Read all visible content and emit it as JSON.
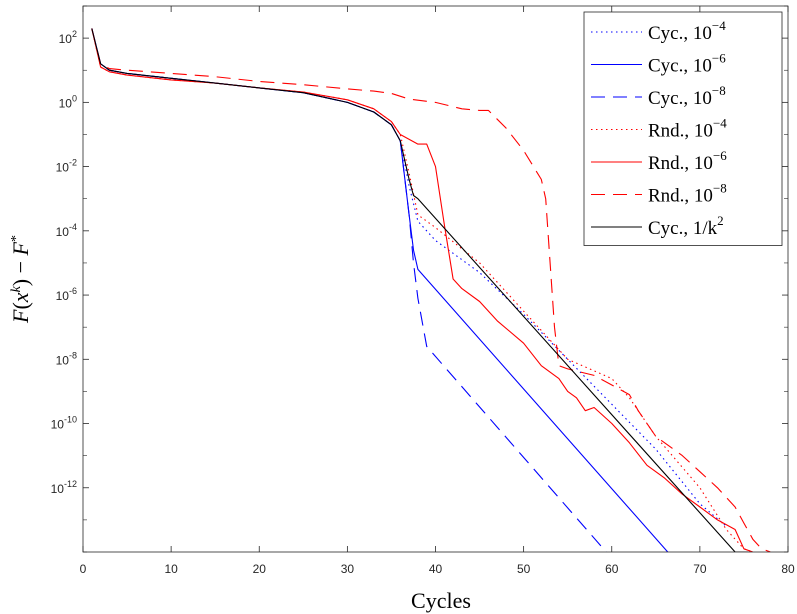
{
  "chart_data": {
    "type": "line",
    "title": "",
    "xlabel": "Cycles",
    "ylabel": "F(x^k) − F^*",
    "xlim": [
      0,
      80
    ],
    "ylim_log10": [
      -14,
      3
    ],
    "y_scale": "log",
    "x_ticks": [
      0,
      10,
      20,
      30,
      40,
      50,
      60,
      70,
      80
    ],
    "x_tick_labels": [
      "0",
      "10",
      "20",
      "30",
      "40",
      "50",
      "60",
      "70",
      "80"
    ],
    "y_tick_exponents": [
      2,
      0,
      -2,
      -4,
      -6,
      -8,
      -10,
      -12
    ],
    "y_tick_labels": [
      {
        "base": "10",
        "exp": "2"
      },
      {
        "base": "10",
        "exp": "0"
      },
      {
        "base": "10",
        "exp": "-2"
      },
      {
        "base": "10",
        "exp": "-4"
      },
      {
        "base": "10",
        "exp": "-6"
      },
      {
        "base": "10",
        "exp": "-8"
      },
      {
        "base": "10",
        "exp": "-10"
      },
      {
        "base": "10",
        "exp": "-12"
      }
    ],
    "legend_position": "top-right",
    "series": [
      {
        "name": "Cyc., 10^-4",
        "label_main": "Cyc., 10",
        "label_exp": "−4",
        "color": "#0000ff",
        "style": "dotted",
        "x": [
          1,
          2,
          3,
          5,
          10,
          15,
          20,
          25,
          30,
          33,
          35,
          36,
          37,
          38,
          40,
          45,
          50,
          55,
          60,
          65,
          70,
          73
        ],
        "log10_y": [
          2.3,
          1.2,
          1.0,
          0.9,
          0.75,
          0.6,
          0.45,
          0.3,
          0.0,
          -0.3,
          -0.7,
          -1.2,
          -2.6,
          -3.7,
          -4.3,
          -5.3,
          -6.6,
          -8.0,
          -9.4,
          -10.8,
          -12.5,
          -13.2
        ]
      },
      {
        "name": "Cyc., 10^-6",
        "label_main": "Cyc., 10",
        "label_exp": "−6",
        "color": "#0000ff",
        "style": "solid",
        "x": [
          1,
          2,
          3,
          5,
          10,
          15,
          20,
          25,
          30,
          33,
          35,
          36,
          37,
          37.5,
          38,
          67
        ],
        "log10_y": [
          2.3,
          1.2,
          1.0,
          0.9,
          0.75,
          0.6,
          0.45,
          0.3,
          0.0,
          -0.3,
          -0.7,
          -1.2,
          -3.5,
          -4.6,
          -5.2,
          -14.2
        ]
      },
      {
        "name": "Cyc., 10^-8",
        "label_main": "Cyc., 10",
        "label_exp": "−8",
        "color": "#0000ff",
        "style": "dashed",
        "x": [
          1,
          2,
          3,
          5,
          10,
          15,
          20,
          25,
          30,
          33,
          35,
          36,
          37,
          37.5,
          38,
          39,
          60,
          61
        ],
        "log10_y": [
          2.3,
          1.2,
          1.0,
          0.9,
          0.75,
          0.6,
          0.45,
          0.3,
          0.0,
          -0.3,
          -0.7,
          -1.2,
          -3.5,
          -5.0,
          -6.1,
          -7.6,
          -14.2,
          -14.2
        ]
      },
      {
        "name": "Rnd., 10^-4",
        "label_main": "Rnd., 10",
        "label_exp": "−4",
        "color": "#ff0000",
        "style": "dotted",
        "x": [
          1,
          2,
          3,
          5,
          10,
          15,
          20,
          25,
          30,
          33,
          35,
          36,
          37,
          38,
          40,
          45,
          50,
          55,
          60,
          62,
          65,
          70,
          73,
          75,
          76
        ],
        "log10_y": [
          2.3,
          1.1,
          0.95,
          0.85,
          0.7,
          0.6,
          0.45,
          0.32,
          0.08,
          -0.2,
          -0.6,
          -1.0,
          -2.2,
          -3.5,
          -3.9,
          -5.0,
          -6.5,
          -8.0,
          -8.6,
          -9.2,
          -10.4,
          -12.0,
          -13.3,
          -13.9,
          -14.0
        ]
      },
      {
        "name": "Rnd., 10^-6",
        "label_main": "Rnd., 10",
        "label_exp": "−6",
        "color": "#ff0000",
        "style": "solid",
        "x": [
          1,
          2,
          3,
          5,
          10,
          15,
          20,
          25,
          30,
          33,
          35,
          36,
          38,
          39,
          40,
          41,
          42,
          43,
          45,
          47,
          50,
          52,
          54,
          55,
          56,
          57,
          58,
          60,
          62,
          64,
          66,
          68,
          70,
          72,
          74,
          75,
          76
        ],
        "log10_y": [
          2.3,
          1.1,
          0.95,
          0.85,
          0.7,
          0.6,
          0.45,
          0.32,
          0.08,
          -0.2,
          -0.6,
          -1.0,
          -1.3,
          -1.3,
          -2.0,
          -3.8,
          -5.5,
          -5.8,
          -6.2,
          -6.8,
          -7.5,
          -8.2,
          -8.6,
          -9.0,
          -9.2,
          -9.6,
          -9.5,
          -10.0,
          -10.6,
          -11.3,
          -11.7,
          -12.2,
          -12.6,
          -13.0,
          -13.3,
          -13.9,
          -14.0
        ]
      },
      {
        "name": "Rnd., 10^-8",
        "label_main": "Rnd., 10",
        "label_exp": "−8",
        "color": "#ff0000",
        "style": "dashed",
        "x": [
          1,
          2,
          3,
          5,
          10,
          15,
          20,
          25,
          30,
          33,
          35,
          37,
          40,
          43,
          45,
          46,
          48,
          50,
          52,
          52.5,
          53,
          53.5,
          54,
          55,
          58,
          60,
          62,
          63,
          65,
          68,
          70,
          72,
          74,
          75,
          76,
          77,
          78
        ],
        "log10_y": [
          2.3,
          1.2,
          1.05,
          1.0,
          0.9,
          0.8,
          0.65,
          0.55,
          0.42,
          0.35,
          0.28,
          0.1,
          0.0,
          -0.2,
          -0.25,
          -0.25,
          -0.8,
          -1.5,
          -2.4,
          -3.0,
          -5.0,
          -7.0,
          -8.2,
          -8.3,
          -8.5,
          -8.8,
          -9.1,
          -9.6,
          -10.4,
          -11.0,
          -11.5,
          -12.0,
          -12.6,
          -13.1,
          -13.6,
          -13.9,
          -14.0
        ]
      },
      {
        "name": "Cyc., 1/k^2",
        "label_main": "Cyc., 1/k",
        "label_exp": "2",
        "color": "#000000",
        "style": "solid",
        "x": [
          1,
          2,
          3,
          5,
          10,
          15,
          20,
          25,
          30,
          33,
          35,
          36,
          37,
          37.5,
          38,
          74,
          75.5
        ],
        "log10_y": [
          2.3,
          1.2,
          1.0,
          0.9,
          0.75,
          0.6,
          0.45,
          0.3,
          0.0,
          -0.3,
          -0.7,
          -1.2,
          -2.4,
          -2.9,
          -3.0,
          -14.0,
          -14.0
        ]
      }
    ]
  }
}
